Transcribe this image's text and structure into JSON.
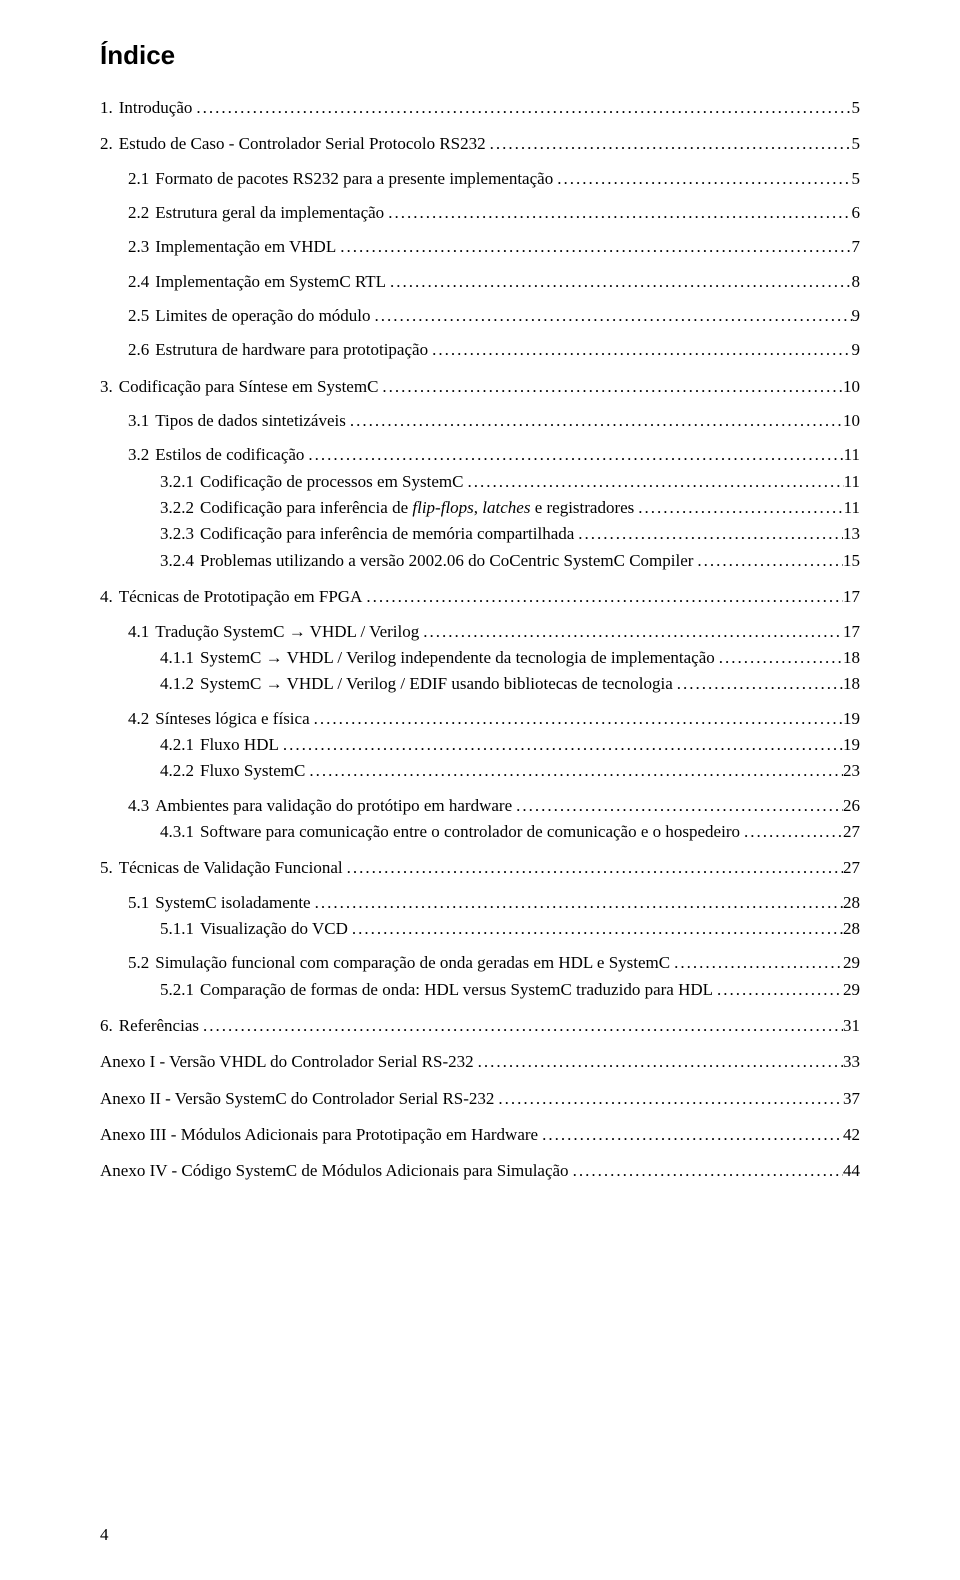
{
  "title": "Índice",
  "page_number": "4",
  "leader_dots": "................................................................................................................................................................................................................",
  "entries": [
    {
      "level": 0,
      "num": "1.",
      "text": "Introdução",
      "page": "5"
    },
    {
      "level": 0,
      "num": "2.",
      "text": "Estudo de Caso - Controlador Serial Protocolo RS232",
      "page": "5"
    },
    {
      "level": 1,
      "num": "2.1",
      "text": "Formato de pacotes RS232 para a presente implementação",
      "page": "5"
    },
    {
      "level": 1,
      "num": "2.2",
      "text": "Estrutura geral  da implementação",
      "page": "6"
    },
    {
      "level": 1,
      "num": "2.3",
      "text": "Implementação em VHDL",
      "page": "7"
    },
    {
      "level": 1,
      "num": "2.4",
      "text": "Implementação em SystemC RTL",
      "page": "8"
    },
    {
      "level": 1,
      "num": "2.5",
      "text": "Limites de operação do módulo",
      "page": "9"
    },
    {
      "level": 1,
      "num": "2.6",
      "text": "Estrutura de hardware para prototipação",
      "page": "9"
    },
    {
      "level": 0,
      "num": "3.",
      "text": "Codificação para Síntese em SystemC",
      "page": "10"
    },
    {
      "level": 1,
      "num": "3.1",
      "text": "Tipos de dados sintetizáveis",
      "page": "10"
    },
    {
      "level": 1,
      "num": "3.2",
      "text": "Estilos de codificação",
      "page": "11"
    },
    {
      "level": 2,
      "num": "3.2.1",
      "text": "Codificação de processos em SystemC",
      "page": "11"
    },
    {
      "level": 2,
      "num": "3.2.2",
      "text_pre": "Codificação para inferência de ",
      "text_italic": "flip-flops",
      "text_mid": ", ",
      "text_italic2": "latches",
      "text_post": " e registradores",
      "page": "11"
    },
    {
      "level": 2,
      "num": "3.2.3",
      "text": "Codificação para inferência de memória compartilhada",
      "page": "13"
    },
    {
      "level": 2,
      "num": "3.2.4",
      "text": "Problemas utilizando a versão 2002.06 do CoCentric SystemC Compiler",
      "page": "15"
    },
    {
      "level": 0,
      "num": "4.",
      "text": "Técnicas de Prototipação em FPGA",
      "page": "17"
    },
    {
      "level": 1,
      "num": "4.1",
      "text": "Tradução SystemC → VHDL / Verilog",
      "page": "17"
    },
    {
      "level": 2,
      "num": "4.1.1",
      "text": "SystemC → VHDL / Verilog independente da tecnologia de implementação",
      "page": "18"
    },
    {
      "level": 2,
      "num": "4.1.2",
      "text": "SystemC → VHDL / Verilog / EDIF usando bibliotecas de tecnologia",
      "page": "18"
    },
    {
      "level": 1,
      "num": "4.2",
      "text": "Sínteses lógica e física",
      "page": "19",
      "gap": true
    },
    {
      "level": 2,
      "num": "4.2.1",
      "text": "Fluxo HDL",
      "page": "19"
    },
    {
      "level": 2,
      "num": "4.2.2",
      "text": "Fluxo SystemC",
      "page": "23"
    },
    {
      "level": 1,
      "num": "4.3",
      "text": "Ambientes para validação do protótipo em hardware",
      "page": "26",
      "gap": true
    },
    {
      "level": 2,
      "num": "4.3.1",
      "text": "Software para comunicação entre o controlador de comunicação e o hospedeiro",
      "page": "27"
    },
    {
      "level": 0,
      "num": "5.",
      "text": "Técnicas de Validação Funcional",
      "page": "27"
    },
    {
      "level": 1,
      "num": "5.1",
      "text": "SystemC isoladamente",
      "page": "28"
    },
    {
      "level": 2,
      "num": "5.1.1",
      "text": "Visualização do VCD",
      "page": "28"
    },
    {
      "level": 1,
      "num": "5.2",
      "text": "Simulação funcional com comparação de onda geradas em HDL e SystemC",
      "page": "29",
      "gap": true
    },
    {
      "level": 2,
      "num": "5.2.1",
      "text": "Comparação de formas de onda: HDL versus SystemC traduzido para HDL",
      "page": "29"
    },
    {
      "level": 0,
      "num": "6.",
      "text": "Referências",
      "page": "31"
    },
    {
      "level": "annex",
      "num": "",
      "text": "Anexo I - Versão VHDL do Controlador Serial RS-232",
      "page": "33"
    },
    {
      "level": "annex",
      "num": "",
      "text": "Anexo II - Versão SystemC do Controlador Serial RS-232",
      "page": "37"
    },
    {
      "level": "annex",
      "num": "",
      "text": "Anexo III - Módulos Adicionais para Prototipação em Hardware",
      "page": "42"
    },
    {
      "level": "annex",
      "num": "",
      "text": "Anexo IV - Código SystemC de Módulos Adicionais para Simulação",
      "page": "44"
    }
  ]
}
